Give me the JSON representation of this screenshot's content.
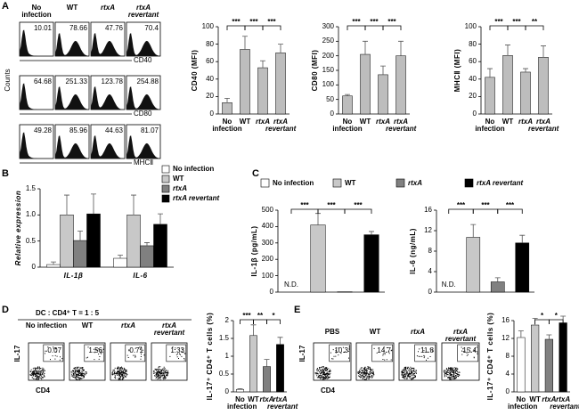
{
  "panel_labels": [
    "A",
    "B",
    "C",
    "D",
    "E"
  ],
  "flow_a": {
    "columns": [
      "No infection",
      "WT",
      "rtxA",
      "rtxA revertant"
    ],
    "y_label": "Counts",
    "rows": [
      {
        "marker": "CD40",
        "values": [
          10.01,
          78.66,
          47.76,
          70.4
        ]
      },
      {
        "marker": "CD80",
        "values": [
          64.68,
          251.33,
          123.78,
          254.88
        ]
      },
      {
        "marker": "MHCⅡ",
        "values": [
          49.28,
          85.96,
          44.63,
          81.07
        ]
      }
    ]
  },
  "flow_d": {
    "title": "DC : CD4⁺ T = 1 : 5",
    "columns": [
      "No infection",
      "WT",
      "rtxA",
      "rtxA revertant"
    ],
    "y_label": "IL-17",
    "x_label": "CD4",
    "values": [
      0.07,
      1.56,
      0.71,
      1.33
    ]
  },
  "flow_e": {
    "columns": [
      "PBS",
      "WT",
      "rtxA",
      "rtxA revertant"
    ],
    "y_label": "IL-17",
    "x_label": "CD4",
    "values": [
      10.3,
      14.7,
      11.8,
      15.4
    ]
  },
  "chart_data": [
    {
      "type": "bar",
      "y_label": "CD40 (MFI)",
      "categories": [
        "No infection",
        "WT",
        "rtxA",
        "rtxA revertant"
      ],
      "values": [
        13,
        74,
        53,
        70
      ],
      "errors": [
        5,
        15,
        8,
        10
      ],
      "colors": [
        "#bdbdbd",
        "#bdbdbd",
        "#bdbdbd",
        "#bdbdbd"
      ],
      "ylim": [
        0,
        100
      ],
      "yticks": [
        0,
        20,
        40,
        60,
        80,
        100
      ],
      "significance": [
        "***",
        "***",
        "***"
      ]
    },
    {
      "type": "bar",
      "y_label": "CD80 (MFI)",
      "categories": [
        "No infection",
        "WT",
        "rtxA",
        "rtxA revertant"
      ],
      "values": [
        62,
        205,
        135,
        200
      ],
      "errors": [
        5,
        45,
        30,
        50
      ],
      "colors": [
        "#bdbdbd",
        "#bdbdbd",
        "#bdbdbd",
        "#bdbdbd"
      ],
      "ylim": [
        0,
        300
      ],
      "yticks": [
        0,
        50,
        100,
        150,
        200,
        250,
        300
      ],
      "significance": [
        "***",
        "***",
        "***"
      ]
    },
    {
      "type": "bar",
      "y_label": "MHCⅡ (MFI)",
      "categories": [
        "No infection",
        "WT",
        "rtxA",
        "rtxA revertant"
      ],
      "values": [
        42,
        67,
        48,
        65
      ],
      "errors": [
        10,
        12,
        4,
        13
      ],
      "colors": [
        "#bdbdbd",
        "#bdbdbd",
        "#bdbdbd",
        "#bdbdbd"
      ],
      "ylim": [
        0,
        100
      ],
      "yticks": [
        0,
        20,
        40,
        60,
        80,
        100
      ],
      "significance": [
        "***",
        "***",
        "**"
      ]
    },
    {
      "type": "grouped_bar",
      "y_label": "Relative expression",
      "categories": [
        "IL-1β",
        "IL-6"
      ],
      "ylim": [
        0,
        1.5
      ],
      "yticks": [
        0,
        0.5,
        {
          "value": 1,
          "label": "1.0"
        },
        1.5
      ],
      "series": [
        {
          "name": "No infection",
          "color": "#ffffff",
          "values": [
            0.05,
            0.17
          ],
          "errors": [
            0.05,
            0.06
          ]
        },
        {
          "name": "WT",
          "color": "#c8c8c8",
          "values": [
            1.0,
            1.0
          ],
          "errors": [
            0.38,
            0.38
          ]
        },
        {
          "name": "rtxA",
          "color": "#808080",
          "values": [
            0.51,
            0.41
          ],
          "errors": [
            0.18,
            0.06
          ]
        },
        {
          "name": "rtxA revertant",
          "color": "#000000",
          "values": [
            1.02,
            0.82
          ],
          "errors": [
            0.38,
            0.2
          ]
        }
      ]
    },
    {
      "type": "bar",
      "legend": "top",
      "y_label": "IL-1β (pg/mL)",
      "categories": [
        "No infection",
        "WT",
        "rtxA",
        "rtxA revertant"
      ],
      "values": [
        null,
        410,
        2,
        350
      ],
      "value_labels": [
        "N.D.",
        null,
        null,
        null
      ],
      "errors": [
        null,
        70,
        null,
        20
      ],
      "colors": [
        "#ffffff",
        "#c8c8c8",
        "#808080",
        "#000000"
      ],
      "ylim": [
        0,
        500
      ],
      "yticks": [
        0,
        100,
        200,
        300,
        400,
        500
      ],
      "significance": [
        "***",
        "***",
        "***"
      ]
    },
    {
      "type": "bar",
      "y_label": "IL-6 (ng/mL)",
      "values": [
        null,
        10.7,
        2,
        9.6
      ],
      "value_labels": [
        "N.D.",
        null,
        null,
        null
      ],
      "errors": [
        null,
        2.5,
        0.8,
        1.5
      ],
      "colors": [
        "#ffffff",
        "#c8c8c8",
        "#808080",
        "#000000"
      ],
      "ylim": [
        0,
        16
      ],
      "yticks": [
        0,
        4,
        8,
        12,
        16
      ],
      "significance": [
        "***",
        "***",
        "***"
      ]
    },
    {
      "type": "bar",
      "y_label": "IL-17⁺ CD4⁺ T cells (%)",
      "categories": [
        "No infection",
        "WT",
        "rtxA",
        "rtxA revertant"
      ],
      "values": [
        0.07,
        1.58,
        0.71,
        1.33
      ],
      "errors": [
        0.02,
        0.3,
        0.2,
        0.2
      ],
      "colors": [
        "#ffffff",
        "#c8c8c8",
        "#808080",
        "#000000"
      ],
      "ylim": [
        0,
        2
      ],
      "yticks": [
        0,
        0.5,
        1,
        1.5,
        2
      ],
      "significance": [
        "***",
        "**",
        "*"
      ]
    },
    {
      "type": "bar",
      "y_label": "IL-17⁺ CD4⁺ T cells (%)",
      "categories": [
        "No infection",
        "WT",
        "rtxA",
        "rtxA revertant"
      ],
      "values": [
        12.2,
        15,
        11.8,
        15.5
      ],
      "errors": [
        1.5,
        1.5,
        1,
        1.5
      ],
      "colors": [
        "#ffffff",
        "#c8c8c8",
        "#808080",
        "#000000"
      ],
      "ylim": [
        0,
        16
      ],
      "yticks": [
        0,
        4,
        8,
        12,
        16
      ],
      "significance": [
        null,
        "*",
        "*"
      ]
    }
  ]
}
